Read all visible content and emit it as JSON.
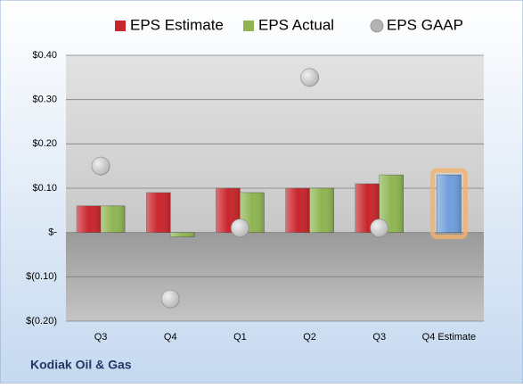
{
  "chart_data": {
    "type": "bar",
    "company": "Kodiak Oil & Gas",
    "categories": [
      "Q3",
      "Q4",
      "Q1",
      "Q2",
      "Q3",
      "Q4 Estimate"
    ],
    "series": [
      {
        "name": "EPS Estimate",
        "color": "#c8262c",
        "values": [
          0.06,
          0.09,
          0.1,
          0.1,
          0.11,
          0.13
        ]
      },
      {
        "name": "EPS Actual",
        "color": "#8fb552",
        "values": [
          0.06,
          -0.01,
          0.09,
          0.1,
          0.13,
          null
        ]
      },
      {
        "name": "EPS GAAP",
        "color": "#b4b4b4",
        "marker": "circle",
        "values": [
          0.15,
          -0.15,
          0.01,
          0.35,
          0.01,
          null
        ]
      }
    ],
    "highlight": {
      "index": 5,
      "color": "#6f9fdc",
      "glow": "#f4b26b"
    },
    "ylim": [
      -0.2,
      0.4
    ],
    "yticks": [
      {
        "value": 0.4,
        "label": "$0.40"
      },
      {
        "value": 0.3,
        "label": "$0.30"
      },
      {
        "value": 0.2,
        "label": "$0.20"
      },
      {
        "value": 0.1,
        "label": "$0.10"
      },
      {
        "value": 0,
        "label": "$-"
      },
      {
        "value": -0.1,
        "label": "$(0.10)"
      },
      {
        "value": -0.2,
        "label": "$(0.20)"
      }
    ],
    "grid": true
  }
}
